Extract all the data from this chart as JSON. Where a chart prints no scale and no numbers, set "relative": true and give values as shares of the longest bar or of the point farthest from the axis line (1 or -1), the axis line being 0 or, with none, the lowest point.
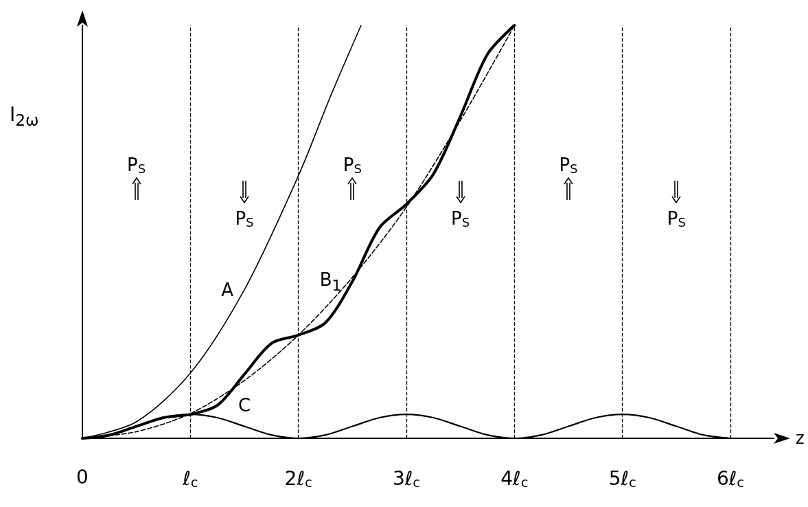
{
  "chart_data": {
    "type": "line",
    "relative": true,
    "xlabel": "z",
    "ylabel": "I$_{2ω}$",
    "xlim": [
      0,
      6.4
    ],
    "xticks": [
      0,
      {
        "value": 1,
        "label": "ℓ$_{c}$"
      },
      {
        "value": 2,
        "label": "2ℓ$_{c}$"
      },
      {
        "value": 3,
        "label": "3ℓ$_{c}$"
      },
      {
        "value": 4,
        "label": "4ℓ$_{c}$"
      },
      {
        "value": 5,
        "label": "5ℓ$_{c}$"
      },
      {
        "value": 6,
        "label": "6ℓ$_{c}$"
      }
    ],
    "series": [
      {
        "name": "A",
        "color": "#000000",
        "x": [
          0,
          0.5,
          1,
          1.5,
          2,
          2.3,
          2.58
        ],
        "values": [
          0,
          0.04,
          0.158,
          0.36,
          0.636,
          0.83,
          1.0
        ]
      },
      {
        "name": "B$_{1}$",
        "color": "#000000",
        "x": [
          0,
          0.25,
          0.5,
          0.75,
          1,
          1.25,
          1.5,
          1.75,
          2,
          2.25,
          2.5,
          2.75,
          3,
          3.25,
          3.5,
          3.75,
          4
        ],
        "values": [
          0,
          0.008,
          0.029,
          0.05,
          0.058,
          0.08,
          0.155,
          0.23,
          0.25,
          0.28,
          0.38,
          0.51,
          0.567,
          0.64,
          0.78,
          0.93,
          1.0
        ]
      },
      {
        "name": "C",
        "color": "#000000",
        "x": [
          0,
          0.25,
          0.5,
          0.75,
          1,
          1.25,
          1.5,
          1.75,
          2,
          2.25,
          2.5,
          2.75,
          3,
          3.25,
          3.5,
          3.75,
          4,
          4.25,
          4.5,
          4.75,
          5,
          5.25,
          5.5,
          5.75,
          6
        ],
        "values": [
          0,
          0.008,
          0.029,
          0.05,
          0.058,
          0.05,
          0.029,
          0.008,
          0,
          0.008,
          0.029,
          0.05,
          0.058,
          0.05,
          0.029,
          0.008,
          0,
          0.008,
          0.029,
          0.05,
          0.058,
          0.05,
          0.029,
          0.008,
          0
        ]
      },
      {
        "color": "#000000",
        "line_style": "dashed",
        "x": [
          0,
          0.5,
          1,
          1.5,
          2,
          2.5,
          3,
          3.5,
          4
        ],
        "values": [
          0,
          0.016,
          0.06,
          0.14,
          0.25,
          0.39,
          0.56,
          0.77,
          1.0
        ]
      }
    ],
    "ref_lines": [
      {
        "axis": "x",
        "value": 1,
        "line_style": "dashed",
        "color": "#000000"
      },
      {
        "axis": "x",
        "value": 2,
        "line_style": "dashed",
        "color": "#000000"
      },
      {
        "axis": "x",
        "value": 3,
        "line_style": "dashed",
        "color": "#000000"
      },
      {
        "axis": "x",
        "value": 4,
        "line_style": "dashed",
        "color": "#000000"
      },
      {
        "axis": "x",
        "value": 5,
        "line_style": "dashed",
        "color": "#000000"
      },
      {
        "axis": "x",
        "value": 6,
        "line_style": "dashed",
        "color": "#000000"
      }
    ],
    "annotations": [
      "P$_{S}$",
      "P$_{S}$",
      "P$_{S}$",
      "P$_{S}$",
      "P$_{S}$",
      "P$_{S}$"
    ],
    "grid": false,
    "legend": false,
    "marker": "none"
  }
}
